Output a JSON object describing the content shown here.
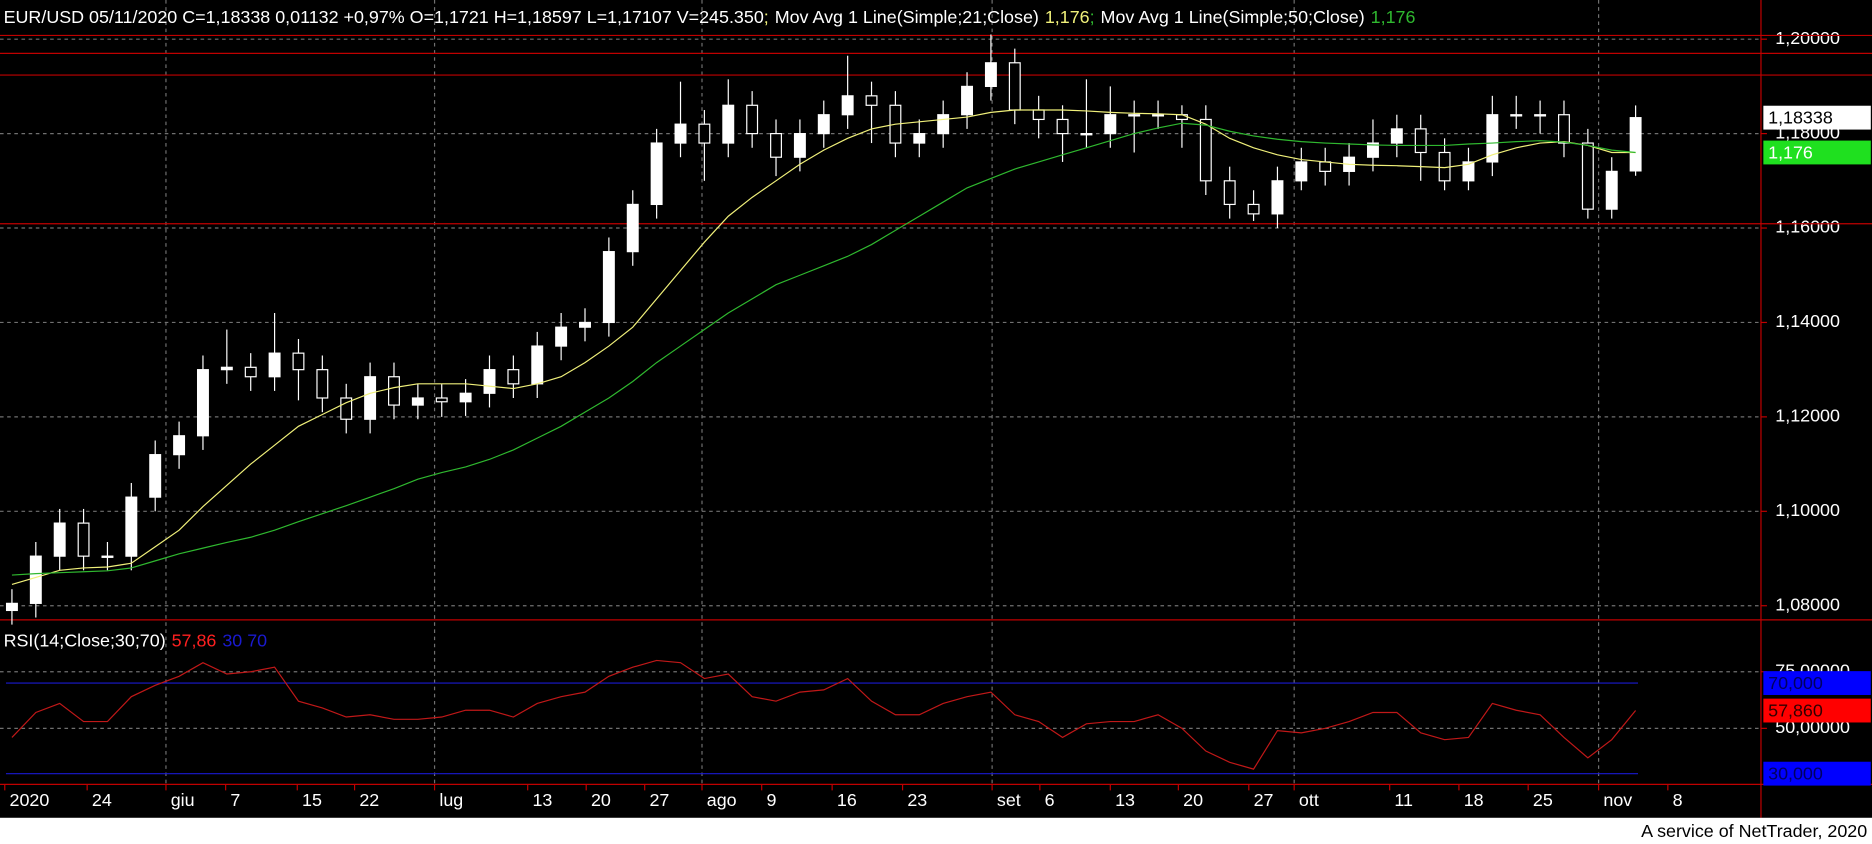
{
  "chart_data": [
    {
      "type": "candlestick",
      "title": "EUR/USD 05/11/2020 C=1,18338 0,01132 +0,97% O=1,1721 H=1,18597 L=1,17107 V=245.350",
      "separator": ";",
      "open": [
        1.079,
        1.0805,
        1.0905,
        1.0975,
        1.0905,
        1.0905,
        1.103,
        1.112,
        1.116,
        1.13,
        1.1305,
        1.1285,
        1.1335,
        1.13,
        1.124,
        1.1195,
        1.1285,
        1.1225,
        1.124,
        1.1232,
        1.125,
        1.13,
        1.127,
        1.135,
        1.139,
        1.14,
        1.155,
        1.165,
        1.178,
        1.182,
        1.178,
        1.186,
        1.18,
        1.175,
        1.18,
        1.184,
        1.188,
        1.186,
        1.178,
        1.18,
        1.184,
        1.19,
        1.195,
        1.185,
        1.183,
        1.18,
        1.18,
        1.184,
        1.184,
        1.184,
        1.183,
        1.17,
        1.165,
        1.163,
        1.17,
        1.174,
        1.172,
        1.175,
        1.178,
        1.181,
        1.176,
        1.17,
        1.174,
        1.184,
        1.184,
        1.184,
        1.178,
        1.164,
        1.1721
      ],
      "high": [
        1.0835,
        1.0935,
        1.1005,
        1.1005,
        1.0935,
        1.106,
        1.115,
        1.119,
        1.133,
        1.1385,
        1.1335,
        1.142,
        1.1365,
        1.133,
        1.127,
        1.1315,
        1.1315,
        1.127,
        1.127,
        1.128,
        1.133,
        1.133,
        1.138,
        1.142,
        1.143,
        1.158,
        1.168,
        1.181,
        1.191,
        1.185,
        1.1915,
        1.189,
        1.183,
        1.183,
        1.187,
        1.1965,
        1.191,
        1.189,
        1.183,
        1.187,
        1.193,
        1.201,
        1.198,
        1.188,
        1.186,
        1.1915,
        1.19,
        1.187,
        1.187,
        1.186,
        1.186,
        1.173,
        1.168,
        1.173,
        1.177,
        1.177,
        1.178,
        1.183,
        1.184,
        1.184,
        1.179,
        1.177,
        1.188,
        1.188,
        1.187,
        1.187,
        1.181,
        1.175,
        1.18597
      ],
      "low": [
        1.076,
        1.0775,
        1.0875,
        1.0875,
        1.0875,
        1.0875,
        1.1,
        1.109,
        1.113,
        1.127,
        1.1255,
        1.1255,
        1.1235,
        1.121,
        1.1165,
        1.1165,
        1.1195,
        1.1195,
        1.12,
        1.1202,
        1.122,
        1.124,
        1.124,
        1.132,
        1.136,
        1.137,
        1.152,
        1.162,
        1.175,
        1.17,
        1.175,
        1.177,
        1.171,
        1.172,
        1.177,
        1.181,
        1.178,
        1.175,
        1.175,
        1.177,
        1.181,
        1.187,
        1.182,
        1.179,
        1.174,
        1.177,
        1.177,
        1.176,
        1.181,
        1.177,
        1.167,
        1.162,
        1.1615,
        1.16,
        1.168,
        1.169,
        1.169,
        1.172,
        1.175,
        1.17,
        1.168,
        1.168,
        1.171,
        1.181,
        1.18,
        1.175,
        1.162,
        1.162,
        1.17107
      ],
      "close": [
        1.0805,
        1.0905,
        1.0975,
        1.0905,
        1.0905,
        1.103,
        1.112,
        1.116,
        1.13,
        1.1305,
        1.1285,
        1.1335,
        1.13,
        1.124,
        1.1195,
        1.1285,
        1.1225,
        1.124,
        1.1232,
        1.125,
        1.13,
        1.127,
        1.135,
        1.139,
        1.14,
        1.155,
        1.165,
        1.178,
        1.182,
        1.178,
        1.186,
        1.18,
        1.175,
        1.18,
        1.184,
        1.188,
        1.186,
        1.178,
        1.18,
        1.184,
        1.19,
        1.195,
        1.185,
        1.183,
        1.18,
        1.18,
        1.184,
        1.184,
        1.184,
        1.183,
        1.17,
        1.165,
        1.163,
        1.17,
        1.174,
        1.172,
        1.175,
        1.178,
        1.181,
        1.176,
        1.17,
        1.174,
        1.184,
        1.184,
        1.184,
        1.178,
        1.164,
        1.172,
        1.18338
      ],
      "up_color": "#ffffff",
      "down_color": "#000000",
      "series": [
        {
          "name": "Mov Avg 1 Line(Simple;21;Close)",
          "color": "#f0f07a",
          "value_label": "1,176",
          "values": [
            1.0845,
            1.086,
            1.0875,
            1.088,
            1.0882,
            1.089,
            1.0925,
            1.096,
            1.101,
            1.1055,
            1.11,
            1.114,
            1.118,
            1.1205,
            1.123,
            1.125,
            1.1262,
            1.127,
            1.127,
            1.127,
            1.1265,
            1.126,
            1.127,
            1.1285,
            1.1315,
            1.135,
            1.139,
            1.145,
            1.151,
            1.157,
            1.1625,
            1.1665,
            1.17,
            1.1735,
            1.1765,
            1.179,
            1.181,
            1.182,
            1.1825,
            1.183,
            1.1835,
            1.1845,
            1.185,
            1.185,
            1.185,
            1.1848,
            1.1845,
            1.1843,
            1.1842,
            1.184,
            1.182,
            1.179,
            1.177,
            1.1755,
            1.1745,
            1.174,
            1.1735,
            1.1733,
            1.1732,
            1.173,
            1.1728,
            1.1735,
            1.1755,
            1.177,
            1.178,
            1.1783,
            1.1775,
            1.176,
            1.176
          ]
        },
        {
          "name": "Mov Avg 1 Line(Simple;50;Close)",
          "color": "#2fb82f",
          "value_label": "1,176",
          "values": [
            1.0865,
            1.0868,
            1.087,
            1.0872,
            1.0874,
            1.088,
            1.0895,
            1.091,
            1.0922,
            1.0934,
            1.0945,
            1.096,
            1.0978,
            1.0995,
            1.1012,
            1.103,
            1.1048,
            1.1068,
            1.1082,
            1.1094,
            1.111,
            1.113,
            1.1155,
            1.118,
            1.121,
            1.124,
            1.1275,
            1.1315,
            1.135,
            1.1385,
            1.142,
            1.145,
            1.148,
            1.15,
            1.152,
            1.154,
            1.1565,
            1.1595,
            1.1625,
            1.1655,
            1.1685,
            1.1705,
            1.1725,
            1.174,
            1.1755,
            1.177,
            1.1785,
            1.18,
            1.1812,
            1.1822,
            1.1818,
            1.1805,
            1.1795,
            1.1788,
            1.1783,
            1.178,
            1.1778,
            1.1776,
            1.1775,
            1.1775,
            1.1775,
            1.1778,
            1.178,
            1.1783,
            1.1785,
            1.1782,
            1.1775,
            1.1765,
            1.176
          ]
        }
      ],
      "hlines": {
        "color": "#c00000",
        "values": [
          1.2008,
          1.197,
          1.1924,
          1.1609
        ]
      },
      "last_labels": [
        {
          "value": 1.18338,
          "label": "1,18338",
          "color": "#ffffff",
          "text_color": "#000000"
        },
        {
          "value": 1.176,
          "label": "1,176",
          "color": "#1fe01f",
          "text_color": "#ffffff"
        }
      ],
      "xlim": [
        -0.5,
        73.25
      ],
      "ylim": [
        1.077,
        1.2083
      ],
      "yticks": [
        {
          "value": 1.08,
          "label": "1,08000"
        },
        {
          "value": 1.1,
          "label": "1,10000"
        },
        {
          "value": 1.12,
          "label": "1,12000"
        },
        {
          "value": 1.14,
          "label": "1,14000"
        },
        {
          "value": 1.16,
          "label": "1,16000"
        },
        {
          "value": 1.18,
          "label": "1,18000"
        },
        {
          "value": 1.2,
          "label": "1,20000"
        }
      ],
      "xticks": [
        {
          "value": -0.3,
          "label": "2020"
        },
        {
          "value": 3.15,
          "label": "24"
        },
        {
          "value": 6.45,
          "label": "giu"
        },
        {
          "value": 8.95,
          "label": "7"
        },
        {
          "value": 11.95,
          "label": "15"
        },
        {
          "value": 14.35,
          "label": "22"
        },
        {
          "value": 17.7,
          "label": "lug"
        },
        {
          "value": 21.6,
          "label": "13"
        },
        {
          "value": 24.05,
          "label": "20"
        },
        {
          "value": 26.5,
          "label": "27"
        },
        {
          "value": 28.9,
          "label": "ago"
        },
        {
          "value": 31.4,
          "label": "9"
        },
        {
          "value": 34.35,
          "label": "16"
        },
        {
          "value": 37.3,
          "label": "23"
        },
        {
          "value": 41.05,
          "label": "set"
        },
        {
          "value": 43.05,
          "label": "6"
        },
        {
          "value": 46,
          "label": "13"
        },
        {
          "value": 48.85,
          "label": "20"
        },
        {
          "value": 51.8,
          "label": "27"
        },
        {
          "value": 53.7,
          "label": "ott"
        },
        {
          "value": 57.7,
          "label": "11"
        },
        {
          "value": 60.6,
          "label": "18"
        },
        {
          "value": 63.5,
          "label": "25"
        },
        {
          "value": 66.45,
          "label": "nov"
        },
        {
          "value": 69.35,
          "label": "8"
        }
      ],
      "grid": true
    },
    {
      "type": "line",
      "series": [
        {
          "name": "RSI(14;Close;30;70)",
          "color": "#c01818",
          "value_label": "57,86",
          "values": [
            46,
            57,
            61,
            53,
            53,
            64,
            69,
            73,
            79,
            74,
            75,
            77,
            62,
            59,
            55,
            56,
            54,
            54,
            55,
            58,
            58,
            55,
            61,
            64,
            66,
            73,
            77,
            80,
            79,
            72,
            74,
            64,
            62,
            66,
            67,
            72,
            62,
            56,
            56,
            61,
            64,
            66,
            56,
            53,
            46,
            52,
            53,
            53,
            56,
            50,
            40,
            35,
            32,
            49,
            48,
            50,
            53,
            57,
            57,
            48,
            45,
            46,
            61,
            58,
            56,
            46,
            37,
            45,
            57.86
          ]
        }
      ],
      "bands_label": "30 70",
      "bands_color": "#1a1ad0",
      "bands": [
        {
          "value": 70,
          "label": "70,000"
        },
        {
          "value": 30,
          "label": "30,000"
        }
      ],
      "last_labels": [
        {
          "value": 57.86,
          "label": "57,860",
          "color": "#ff0000",
          "text_color": "#300000"
        }
      ],
      "band_box_color": "#0000ff",
      "band_text_color": "#000060",
      "xlim": [
        -0.5,
        73.25
      ],
      "ylim": [
        25.26,
        96.84
      ],
      "yticks": [
        {
          "value": 50,
          "label": "50,00000"
        },
        {
          "value": 75,
          "label": "75,00000"
        }
      ],
      "grid": true
    },
    {
      "type": "footer",
      "text": "A service of NetTrader, 2020"
    }
  ]
}
